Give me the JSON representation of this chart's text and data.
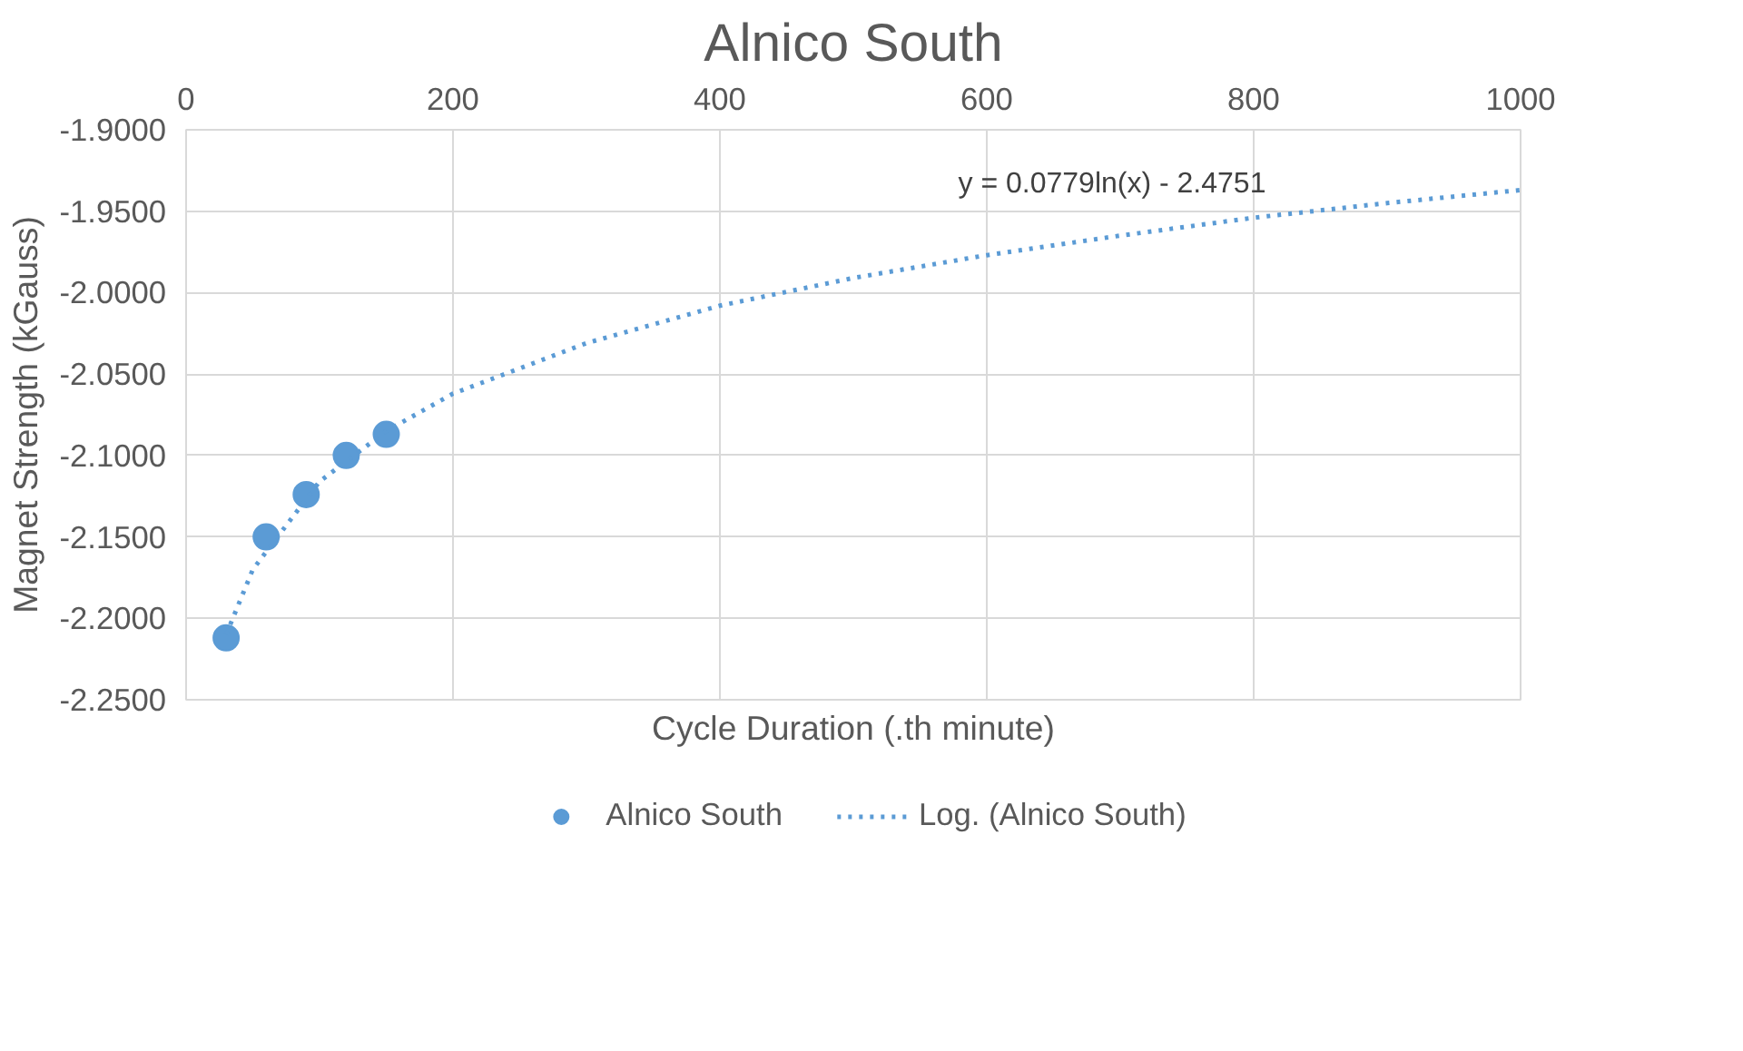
{
  "chart_data": {
    "type": "scatter",
    "title": "Alnico South",
    "xlabel": "Cycle Duration (.th minute)",
    "ylabel": "Magnet Strength (kGauss)",
    "x": [
      30,
      60,
      90,
      120,
      150
    ],
    "series": [
      {
        "name": "Alnico South",
        "color": "#5b9bd5",
        "values": [
          -2.212,
          -2.15,
          -2.124,
          -2.1,
          -2.087
        ],
        "marker": "circle"
      },
      {
        "name": "Log. (Alnico South)",
        "type": "line",
        "color": "#5b9bd5",
        "line_style": "dotted",
        "marker": "none",
        "x": [
          30,
          50,
          100,
          150,
          200,
          300,
          400,
          500,
          600,
          700,
          800,
          900,
          1000
        ],
        "values": [
          -2.21,
          -2.17,
          -2.116,
          -2.085,
          -2.062,
          -2.031,
          -2.008,
          -1.991,
          -1.977,
          -1.965,
          -1.954,
          -1.945,
          -1.937
        ]
      }
    ],
    "xlim": [
      0,
      1000
    ],
    "xticks": [
      0,
      200,
      400,
      600,
      800,
      1000
    ],
    "ylim": [
      -2.25,
      -1.9
    ],
    "yticks": [
      {
        "value": -2.25,
        "label": "-2.2500"
      },
      {
        "value": -2.2,
        "label": "-2.2000"
      },
      {
        "value": -2.15,
        "label": "-2.1500"
      },
      {
        "value": -2.1,
        "label": "-2.1000"
      },
      {
        "value": -2.05,
        "label": "-2.0500"
      },
      {
        "value": -2.0,
        "label": "-2.0000"
      },
      {
        "value": -1.95,
        "label": "-1.9500"
      },
      {
        "value": -1.9,
        "label": "-1.9000"
      }
    ],
    "annotations": [
      "y = 0.0779ln(x) - 2.4751"
    ],
    "grid": true,
    "legend": "bottom"
  }
}
